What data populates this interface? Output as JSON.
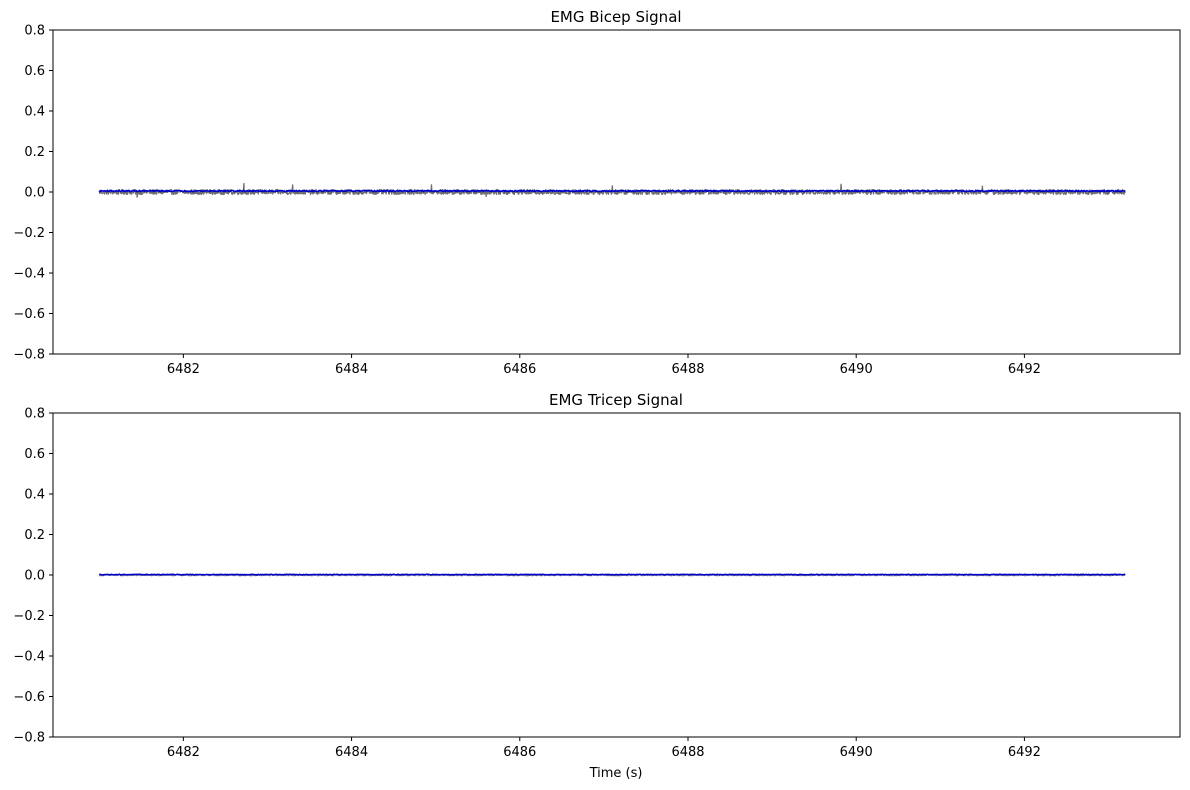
{
  "chart_data": [
    {
      "type": "line",
      "title": "EMG Bicep Signal",
      "xlabel": "",
      "ylabel": "",
      "xlim": [
        6480.45,
        6493.85
      ],
      "ylim": [
        -0.8,
        0.8
      ],
      "x_ticks": [
        6482,
        6484,
        6486,
        6488,
        6490,
        6492
      ],
      "y_ticks": [
        0.8,
        0.6,
        0.4,
        0.2,
        0.0,
        -0.2,
        -0.4,
        -0.6,
        -0.8
      ],
      "x_tick_labels": [
        "6482",
        "6484",
        "6486",
        "6488",
        "6490",
        "6492"
      ],
      "y_tick_labels": [
        "0.8",
        "0.6",
        "0.4",
        "0.2",
        "0.0",
        "−0.2",
        "−0.4",
        "−0.6",
        "−0.8"
      ],
      "grid": false,
      "series": [
        {
          "color": "#6e6e6e",
          "style": "raw-noise",
          "x_start": 6481.0,
          "x_end": 6493.2,
          "baseline": 0.0,
          "noise_amplitude": 0.012,
          "spikes": [
            {
              "x": 6482.72,
              "y": 0.042
            },
            {
              "x": 6483.3,
              "y": 0.035
            },
            {
              "x": 6484.95,
              "y": 0.035
            },
            {
              "x": 6487.1,
              "y": 0.03
            },
            {
              "x": 6489.82,
              "y": 0.038
            },
            {
              "x": 6491.5,
              "y": 0.028
            },
            {
              "x": 6481.45,
              "y": -0.025
            },
            {
              "x": 6485.6,
              "y": -0.022
            }
          ]
        },
        {
          "color": "#0000cc",
          "style": "envelope",
          "x_start": 6481.0,
          "x_end": 6493.2,
          "baseline": 0.005,
          "noise_amplitude": 0.003
        }
      ]
    },
    {
      "type": "line",
      "title": "EMG Tricep Signal",
      "xlabel": "Time (s)",
      "ylabel": "",
      "xlim": [
        6480.45,
        6493.85
      ],
      "ylim": [
        -0.8,
        0.8
      ],
      "x_ticks": [
        6482,
        6484,
        6486,
        6488,
        6490,
        6492
      ],
      "y_ticks": [
        0.8,
        0.6,
        0.4,
        0.2,
        0.0,
        -0.2,
        -0.4,
        -0.6,
        -0.8
      ],
      "x_tick_labels": [
        "6482",
        "6484",
        "6486",
        "6488",
        "6490",
        "6492"
      ],
      "y_tick_labels": [
        "0.8",
        "0.6",
        "0.4",
        "0.2",
        "0.0",
        "−0.2",
        "−0.4",
        "−0.6",
        "−0.8"
      ],
      "grid": false,
      "series": [
        {
          "color": "#8a8a8a",
          "style": "raw-noise",
          "x_start": 6481.0,
          "x_end": 6493.2,
          "baseline": 0.0,
          "noise_amplitude": 0.004,
          "spikes": []
        },
        {
          "color": "#0000cc",
          "style": "envelope",
          "x_start": 6481.0,
          "x_end": 6493.2,
          "baseline": 0.002,
          "noise_amplitude": 0.0015
        }
      ]
    }
  ]
}
